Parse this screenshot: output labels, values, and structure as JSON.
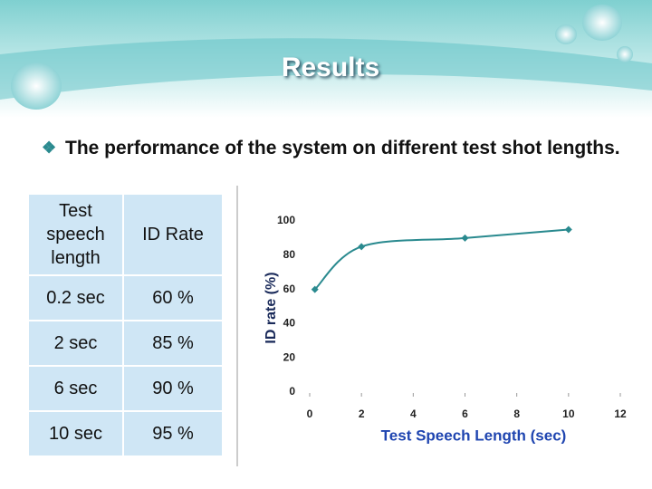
{
  "slide_title": "Results",
  "bullet": "The performance of the system on different test shot lengths.",
  "table": {
    "header": [
      "Test speech length",
      "ID Rate"
    ],
    "rows": [
      [
        "0.2 sec",
        "60 %"
      ],
      [
        "2 sec",
        "85 %"
      ],
      [
        "6 sec",
        "90 %"
      ],
      [
        "10 sec",
        "95 %"
      ]
    ]
  },
  "chart_data": {
    "type": "line",
    "x": [
      0.2,
      2,
      6,
      10
    ],
    "values": [
      60,
      85,
      90,
      95
    ],
    "color": "#2a8a8f",
    "xlim": [
      0,
      12
    ],
    "xticks": [
      0,
      2,
      4,
      6,
      8,
      10,
      12
    ],
    "ylim": [
      0,
      100
    ],
    "yticks": [
      0,
      20,
      40,
      60,
      80,
      100
    ],
    "xlabel": "Test Speech Length (sec)",
    "ylabel": "ID rate (%)",
    "grid": false
  }
}
